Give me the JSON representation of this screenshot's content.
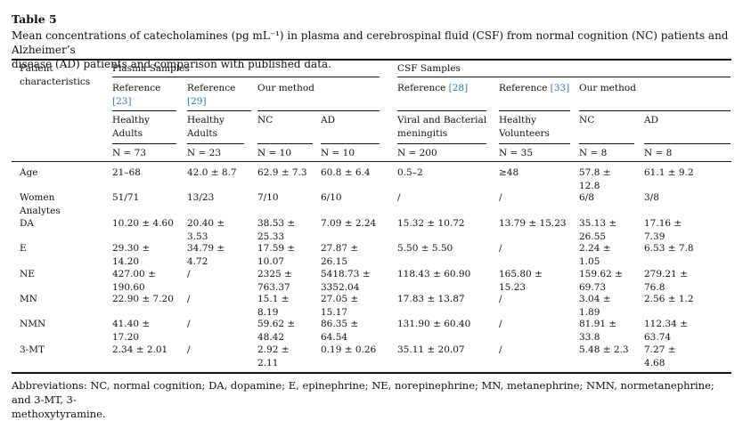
{
  "table": {
    "title": "Table 5",
    "caption_lines": [
      "Mean concentrations of catecholamines (pg mL⁻¹) in plasma and cerebrospinal fluid (CSF) from normal cognition (NC) patients and Alzheimer’s",
      "disease (AD) patients and comparison with published data."
    ],
    "header": {
      "patient_chars": [
        "Patient",
        "characteristics"
      ],
      "plasma_group": "Plasma Samples",
      "csf_group": "CSF Samples",
      "plasma_ref1": [
        "Reference",
        "[23]"
      ],
      "plasma_ref2": [
        "Reference",
        "[29]"
      ],
      "plasma_method": "Our method",
      "csf_ref1_text": "Reference",
      "csf_ref1_num": "[28]",
      "csf_ref2_text": "Reference",
      "csf_ref2_num": "[33]",
      "csf_method": "Our method",
      "sub": [
        [
          "Healthy",
          "Adults"
        ],
        [
          "Healthy",
          "Adults"
        ],
        [
          "NC"
        ],
        [
          "AD"
        ],
        [
          "Viral and Bacterial",
          "meningitis"
        ],
        [
          "Healthy",
          "Volunteers"
        ],
        [
          "NC"
        ],
        [
          "AD"
        ]
      ],
      "n": [
        "N = 73",
        "N = 23",
        "N = 10",
        "N = 10",
        "N = 200",
        "N = 35",
        "N = 8",
        "N = 8"
      ]
    },
    "rows": [
      {
        "label": [
          "Age"
        ],
        "cells": [
          [
            "21–68"
          ],
          [
            "42.0 ± 8.7"
          ],
          [
            "62.9 ± 7.3"
          ],
          [
            "60.8 ± 6.4"
          ],
          [
            "0.5–2"
          ],
          [
            "≥48"
          ],
          [
            "57.8 ±",
            "12.8"
          ],
          [
            "61.1 ± 9.2"
          ]
        ]
      },
      {
        "label": [
          "Women",
          "Analytes"
        ],
        "cells": [
          [
            "51/71"
          ],
          [
            "13/23"
          ],
          [
            "7/10"
          ],
          [
            "6/10"
          ],
          [
            "/"
          ],
          [
            "/"
          ],
          [
            "6/8"
          ],
          [
            "3/8"
          ]
        ]
      },
      {
        "label": [
          "DA"
        ],
        "cells": [
          [
            "10.20 ± 4.60"
          ],
          [
            "20.40 ±",
            "3.53"
          ],
          [
            "38.53 ±",
            "25.33"
          ],
          [
            "7.09 ± 2.24"
          ],
          [
            "15.32 ± 10.72"
          ],
          [
            "13.79 ± 15.23"
          ],
          [
            "35.13 ±",
            "26.55"
          ],
          [
            "17.16 ±",
            "7.39"
          ]
        ]
      },
      {
        "label": [
          "E"
        ],
        "cells": [
          [
            "29.30 ±",
            "14.20"
          ],
          [
            "34.79 ±",
            "4.72"
          ],
          [
            "17.59 ±",
            "10.07"
          ],
          [
            "27.87 ±",
            "26.15"
          ],
          [
            "5.50 ± 5.50"
          ],
          [
            "/"
          ],
          [
            "2.24 ±",
            "1.05"
          ],
          [
            "6.53 ± 7.8"
          ]
        ]
      },
      {
        "label": [
          "NE"
        ],
        "cells": [
          [
            "427.00 ±",
            "190.60"
          ],
          [
            "/"
          ],
          [
            "2325 ±",
            "763.37"
          ],
          [
            "5418.73 ±",
            "3352.04"
          ],
          [
            "118.43 ± 60.90"
          ],
          [
            "165.80 ±",
            "15.23"
          ],
          [
            "159.62 ±",
            "69.73"
          ],
          [
            "279.21 ±",
            "76.8"
          ]
        ]
      },
      {
        "label": [
          "MN"
        ],
        "cells": [
          [
            "22.90 ± 7.20"
          ],
          [
            "/"
          ],
          [
            "15.1 ±",
            "8.19"
          ],
          [
            "27.05 ±",
            "15.17"
          ],
          [
            "17.83 ± 13.87"
          ],
          [
            "/"
          ],
          [
            "3.04 ±",
            "1.89"
          ],
          [
            "2.56 ± 1.2"
          ]
        ]
      },
      {
        "label": [
          "NMN"
        ],
        "cells": [
          [
            "41.40 ±",
            "17.20"
          ],
          [
            "/"
          ],
          [
            "59.62 ±",
            "48.42"
          ],
          [
            "86.35 ±",
            "64.54"
          ],
          [
            "131.90 ± 60.40"
          ],
          [
            "/"
          ],
          [
            "81.91 ±",
            "33.8"
          ],
          [
            "112.34 ±",
            "63.74"
          ]
        ]
      },
      {
        "label": [
          "3-MT"
        ],
        "cells": [
          [
            "2.34 ± 2.01"
          ],
          [
            "/"
          ],
          [
            "2.92 ±",
            "2.11"
          ],
          [
            "0.19 ± 0.26"
          ],
          [
            "35.11 ± 20.07"
          ],
          [
            "/"
          ],
          [
            "5.48 ± 2.3"
          ],
          [
            "7.27 ±",
            "4.68"
          ]
        ]
      }
    ],
    "footnote_lines": [
      "Abbreviations: NC, normal cognition; DA, dopamine; E, epinephrine; NE, norepinephrine; MN, metanephrine; NMN, normetanephrine; and 3-MT, 3-",
      "methoxytyramine."
    ]
  }
}
